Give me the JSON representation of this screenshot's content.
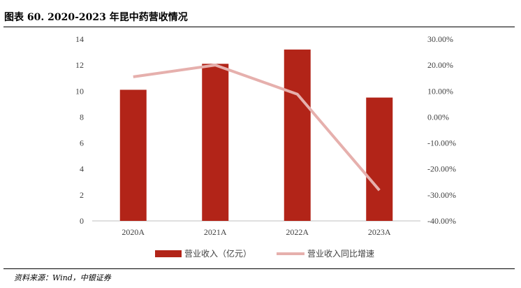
{
  "figure": {
    "title": "图表 60. 2020-2023 年昆中药营收情况",
    "source": "资料来源：Wind，中银证券"
  },
  "chart_data": {
    "type": "bar",
    "categories": [
      "2020A",
      "2021A",
      "2022A",
      "2023A"
    ],
    "series": [
      {
        "name": "营业收入（亿元）",
        "type": "bar",
        "axis": "left",
        "color": "#b22418",
        "values": [
          10.1,
          12.1,
          13.2,
          9.5
        ]
      },
      {
        "name": "营业收入同比增速",
        "type": "line",
        "axis": "right",
        "color": "#e6b0ad",
        "values": [
          15.5,
          20.0,
          8.8,
          -28.2
        ]
      }
    ],
    "y_left": {
      "min": 0,
      "max": 14,
      "ticks": [
        "0",
        "2",
        "4",
        "6",
        "8",
        "10",
        "12",
        "14"
      ]
    },
    "y_right": {
      "min": -40,
      "max": 30,
      "ticks": [
        "-40.00%",
        "-30.00%",
        "-20.00%",
        "-10.00%",
        "0.00%",
        "10.00%",
        "20.00%",
        "30.00%"
      ]
    },
    "legend_position": "bottom",
    "grid": false
  }
}
